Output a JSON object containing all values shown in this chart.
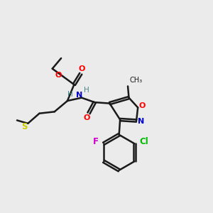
{
  "background_color": "#ebebeb",
  "bond_color": "#1a1a1a",
  "bond_width": 1.8,
  "colors": {
    "O": "#ff0000",
    "N": "#0000cc",
    "S": "#cccc00",
    "F": "#cc00cc",
    "Cl": "#00bb00",
    "H": "#4a8888"
  }
}
